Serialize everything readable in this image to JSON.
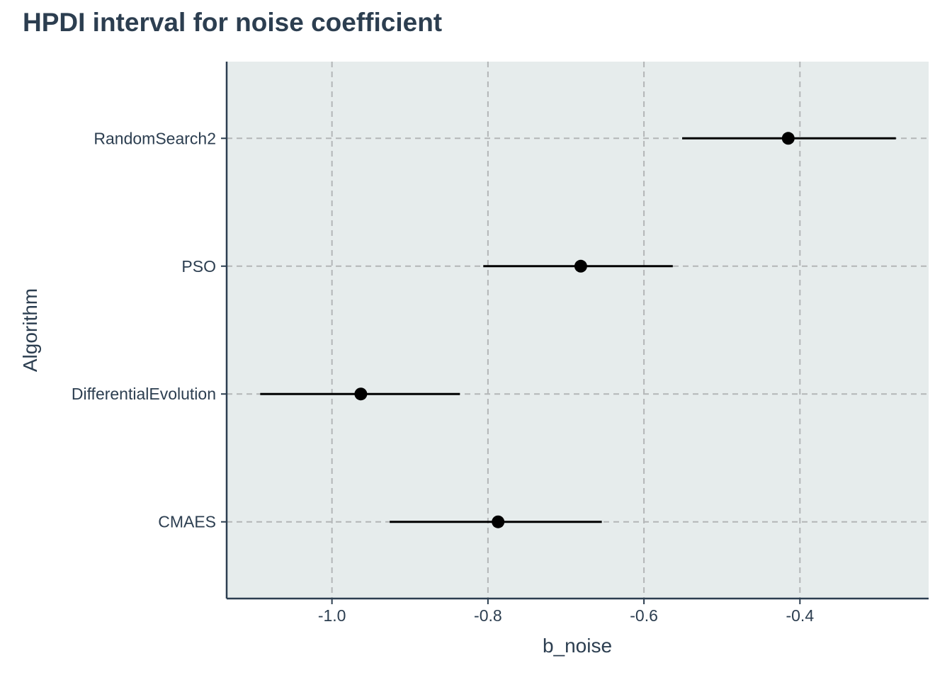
{
  "chart_data": {
    "type": "scatter",
    "subtype": "pointrange",
    "title": "HPDI interval for noise coefficient",
    "xlabel": "b_noise",
    "ylabel": "Algorithm",
    "xlim": [
      -1.135,
      -0.235
    ],
    "x_ticks": [
      -1.0,
      -0.8,
      -0.6,
      -0.4
    ],
    "x_tick_labels": [
      "-1.0",
      "-0.8",
      "-0.6",
      "-0.4"
    ],
    "categories": [
      "CMAES",
      "DifferentialEvolution",
      "PSO",
      "RandomSearch2"
    ],
    "points": [
      {
        "category": "CMAES",
        "mean": -0.787,
        "lower": -0.926,
        "upper": -0.654
      },
      {
        "category": "DifferentialEvolution",
        "mean": -0.963,
        "lower": -1.092,
        "upper": -0.836
      },
      {
        "category": "PSO",
        "mean": -0.681,
        "lower": -0.806,
        "upper": -0.563
      },
      {
        "category": "RandomSearch2",
        "mean": -0.415,
        "lower": -0.551,
        "upper": -0.277
      }
    ],
    "grid": true,
    "panel_background": "#e6ecec",
    "text_color": "#2c3e50",
    "grid_color": "#b3b6b7",
    "mark_color": "#000000"
  }
}
